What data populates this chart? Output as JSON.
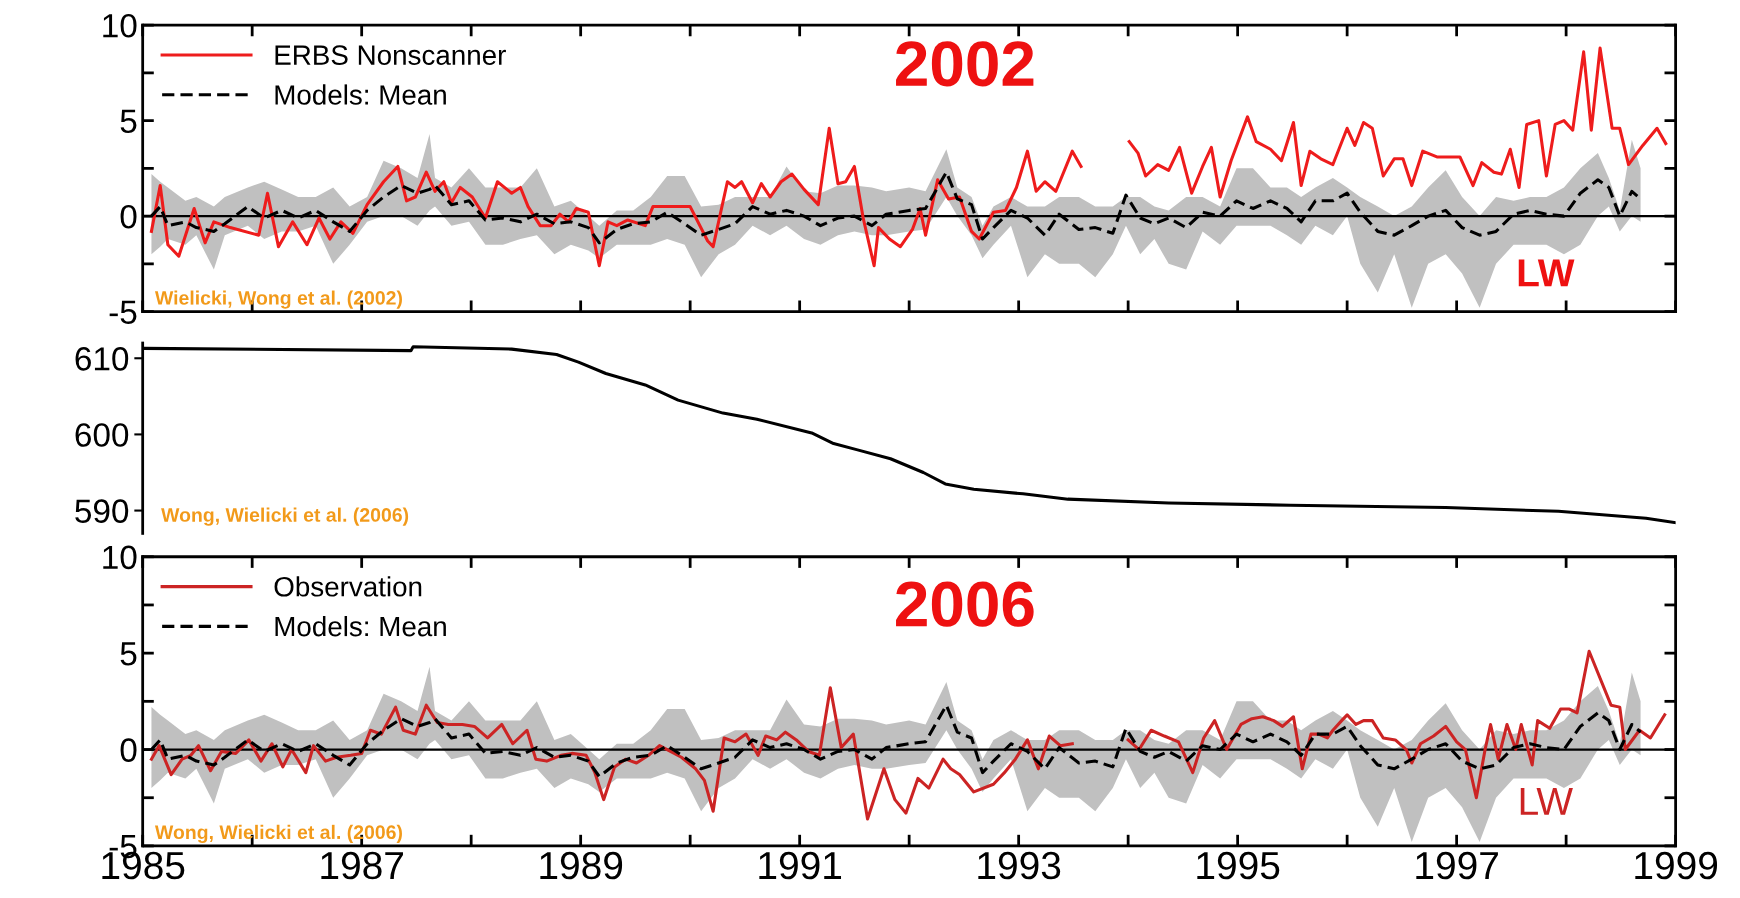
{
  "chart_data": [
    {
      "type": "line",
      "xlim": [
        1985,
        1999
      ],
      "ylim": [
        -5,
        10
      ],
      "xticks": [
        {
          "value": 1985,
          "label": null
        },
        {
          "value": 1986,
          "label": null
        },
        {
          "value": 1987,
          "label": null
        },
        {
          "value": 1988,
          "label": null
        },
        {
          "value": 1989,
          "label": null
        },
        {
          "value": 1990,
          "label": null
        },
        {
          "value": 1991,
          "label": null
        },
        {
          "value": 1992,
          "label": null
        },
        {
          "value": 1993,
          "label": null
        },
        {
          "value": 1994,
          "label": null
        },
        {
          "value": 1995,
          "label": null
        },
        {
          "value": 1996,
          "label": null
        },
        {
          "value": 1997,
          "label": null
        },
        {
          "value": 1998,
          "label": null
        },
        {
          "value": 1999,
          "label": null
        }
      ],
      "yticks": [
        -5,
        {
          "value": -2.5,
          "label": null
        },
        0,
        {
          "value": 2.5,
          "label": null
        },
        5,
        {
          "value": 7.5,
          "label": null
        },
        10
      ],
      "tick_labels": "y",
      "legend": "top left",
      "ref_lines": [
        {
          "axis": "y",
          "value": 0,
          "color": "#000000"
        }
      ],
      "annotations": [
        "2002",
        "LW",
        "Wielicki, Wong et al. (2002)"
      ],
      "series": [
        {
          "name": "ERBS Nonscanner",
          "color": "#ee1c1c",
          "line_style": "solid",
          "x": [
            1985.08,
            1985.16,
            1985.23,
            1985.33,
            1985.47,
            1985.57,
            1985.65,
            1985.8,
            1986.06,
            1986.14,
            1986.24,
            1986.37,
            1986.5,
            1986.61,
            1986.71,
            1986.81,
            1986.92,
            1987.05,
            1987.2,
            1987.33,
            1987.41,
            1987.49,
            1987.59,
            1987.67,
            1987.75,
            1987.82,
            1987.9,
            1988.01,
            1988.13,
            1988.24,
            1988.37,
            1988.45,
            1988.52,
            1988.63,
            1988.73,
            1988.81,
            1988.89,
            1988.96,
            1989.07,
            1989.17,
            1989.25,
            1989.33,
            1989.43,
            1989.59,
            1989.66,
            1989.79,
            1990.0,
            1990.16,
            1990.21,
            1990.34,
            1990.41,
            1990.47,
            1990.57,
            1990.65,
            1990.73,
            1990.83,
            1990.93,
            1991.04,
            1991.17,
            1991.27,
            1991.35,
            1991.42,
            1991.5,
            1991.58,
            1991.68,
            1991.72,
            1991.82,
            1991.92,
            1992.03,
            1992.1,
            1992.15,
            1992.26,
            1992.36,
            1992.46,
            1992.57,
            1992.64,
            1992.77,
            1992.88,
            1992.98,
            1993.08,
            1993.16,
            1993.24,
            1993.34,
            1993.49,
            1993.57,
            1993.75,
            1994.01,
            1994.09,
            1994.16,
            1994.27,
            1994.37,
            1994.47,
            1994.58,
            1994.68,
            1994.76,
            1994.84,
            1994.94,
            1995.09,
            1995.17,
            1995.3,
            1995.4,
            1995.51,
            1995.58,
            1995.66,
            1995.76,
            1995.87,
            1996.0,
            1996.07,
            1996.15,
            1996.23,
            1996.33,
            1996.43,
            1996.51,
            1996.59,
            1996.69,
            1996.82,
            1996.92,
            1997.03,
            1997.15,
            1997.23,
            1997.34,
            1997.41,
            1997.49,
            1997.57,
            1997.64,
            1997.75,
            1997.82,
            1997.9,
            1997.98,
            1998.06,
            1998.16,
            1998.23,
            1998.31,
            1998.42,
            1998.49,
            1998.57,
            1998.7,
            1998.83,
            1998.91
          ],
          "values": [
            -0.8,
            1.6,
            -1.5,
            -2.1,
            0.4,
            -1.4,
            -0.3,
            -0.6,
            -1.0,
            1.2,
            -1.6,
            -0.3,
            -1.5,
            -0.1,
            -1.2,
            -0.3,
            -0.9,
            0.6,
            1.8,
            2.6,
            0.8,
            1.0,
            2.3,
            1.3,
            1.8,
            0.7,
            1.5,
            1.0,
            -0.1,
            1.8,
            1.2,
            1.5,
            0.5,
            -0.5,
            -0.5,
            0.1,
            -0.3,
            0.4,
            0.2,
            -2.6,
            -0.3,
            -0.5,
            -0.2,
            -0.5,
            0.5,
            0.5,
            0.5,
            -1.3,
            -1.6,
            1.8,
            1.5,
            1.8,
            0.7,
            1.7,
            1.0,
            1.8,
            2.2,
            1.4,
            0.6,
            4.6,
            1.7,
            1.8,
            2.6,
            -0.1,
            -2.6,
            -0.6,
            -1.2,
            -1.6,
            -0.7,
            0.4,
            -1.0,
            1.9,
            0.9,
            1.0,
            -0.8,
            -1.2,
            0.2,
            0.3,
            1.5,
            3.4,
            1.3,
            1.8,
            1.3,
            3.4,
            2.6,
            null,
            3.9,
            3.3,
            2.1,
            2.7,
            2.4,
            3.6,
            1.2,
            2.6,
            3.6,
            1.0,
            2.9,
            5.2,
            3.9,
            3.5,
            2.9,
            4.9,
            1.6,
            3.4,
            3.0,
            2.7,
            4.6,
            3.7,
            4.9,
            4.6,
            2.1,
            3.0,
            3.0,
            1.6,
            3.4,
            3.1,
            3.1,
            3.1,
            1.6,
            2.8,
            2.3,
            2.2,
            3.5,
            1.5,
            4.8,
            5.0,
            2.1,
            4.8,
            5.0,
            4.5,
            8.6,
            4.5,
            8.8,
            4.6,
            4.6,
            2.7,
            3.7,
            4.6,
            3.8
          ]
        },
        {
          "name": "Models: Mean",
          "color": "#000000",
          "line_style": "dashed",
          "x": [
            1985.08,
            1985.16,
            1985.23,
            1985.39,
            1985.49,
            1985.65,
            1985.75,
            1985.96,
            1986.11,
            1986.27,
            1986.42,
            1986.58,
            1986.74,
            1986.89,
            1987.05,
            1987.2,
            1987.36,
            1987.51,
            1987.62,
            1987.67,
            1987.82,
            1987.98,
            1988.13,
            1988.29,
            1988.45,
            1988.6,
            1988.76,
            1988.91,
            1989.07,
            1989.17,
            1989.33,
            1989.48,
            1989.64,
            1989.79,
            1989.95,
            1990.1,
            1990.26,
            1990.41,
            1990.57,
            1990.73,
            1990.88,
            1991.04,
            1991.19,
            1991.35,
            1991.5,
            1991.66,
            1991.79,
            1992.0,
            1992.15,
            1992.34,
            1992.44,
            1992.57,
            1992.67,
            1992.77,
            1992.93,
            1993.08,
            1993.24,
            1993.37,
            1993.55,
            1993.7,
            1993.86,
            1993.98,
            1994.11,
            1994.24,
            1994.37,
            1994.53,
            1994.68,
            1994.84,
            1994.99,
            1995.14,
            1995.3,
            1995.45,
            1995.58,
            1995.71,
            1995.87,
            1996.0,
            1996.12,
            1996.28,
            1996.43,
            1996.59,
            1996.74,
            1996.9,
            1997.05,
            1997.21,
            1997.36,
            1997.52,
            1997.67,
            1997.82,
            1997.98,
            1998.13,
            1998.29,
            1998.39,
            1998.49,
            1998.6,
            1998.68
          ],
          "values": [
            0.0,
            0.5,
            -0.5,
            -0.3,
            -0.6,
            -0.8,
            -0.4,
            0.5,
            -0.1,
            0.3,
            -0.1,
            0.3,
            -0.3,
            -0.8,
            0.3,
            1.0,
            1.6,
            1.2,
            1.4,
            1.6,
            0.6,
            0.8,
            -0.2,
            -0.1,
            -0.3,
            0.1,
            -0.4,
            -0.3,
            -0.6,
            -1.4,
            -0.7,
            -0.4,
            -0.3,
            0.2,
            -0.4,
            -1.0,
            -0.7,
            -0.4,
            0.5,
            0.1,
            0.3,
            0.0,
            -0.5,
            -0.1,
            0.0,
            -0.5,
            0.1,
            0.3,
            0.4,
            2.3,
            0.9,
            0.6,
            -1.2,
            -0.6,
            0.3,
            -0.1,
            -1.0,
            0.1,
            -0.7,
            -0.6,
            -0.9,
            1.1,
            -0.1,
            -0.4,
            -0.1,
            -0.6,
            0.2,
            0.0,
            0.8,
            0.4,
            0.8,
            0.4,
            -0.3,
            0.8,
            0.8,
            1.2,
            0.2,
            -0.8,
            -1.0,
            -0.5,
            0.0,
            0.3,
            -0.6,
            -1.0,
            -0.8,
            0.1,
            0.3,
            0.1,
            0.0,
            1.2,
            1.9,
            1.5,
            0.0,
            1.3,
            0.9
          ],
          "upper": [
            2.2,
            1.8,
            1.5,
            0.8,
            1.0,
            0.5,
            1.0,
            1.5,
            1.8,
            1.4,
            1.0,
            1.0,
            1.5,
            0.5,
            1.0,
            2.9,
            2.5,
            2.0,
            4.3,
            2.0,
            1.5,
            2.5,
            1.5,
            1.5,
            1.5,
            2.5,
            0.5,
            0.8,
            0.0,
            -0.5,
            0.3,
            0.3,
            1.0,
            2.1,
            2.1,
            0.5,
            0.6,
            1.0,
            1.0,
            1.0,
            2.6,
            1.3,
            1.2,
            1.6,
            1.6,
            1.5,
            1.3,
            1.5,
            1.3,
            3.5,
            1.5,
            1.0,
            -0.5,
            0.5,
            1.0,
            0.5,
            0.5,
            1.0,
            1.0,
            0.5,
            0.5,
            1.0,
            1.0,
            0.5,
            0.3,
            1.0,
            1.0,
            0.5,
            2.5,
            2.5,
            1.5,
            1.5,
            1.0,
            1.5,
            2.0,
            1.5,
            1.0,
            0.5,
            0.0,
            0.5,
            1.5,
            2.4,
            1.0,
            0.0,
            1.0,
            0.8,
            1.0,
            1.0,
            1.5,
            2.5,
            3.3,
            2.0,
            0.3,
            4.0,
            2.5
          ],
          "lower": [
            -2.0,
            -1.6,
            -1.2,
            -1.5,
            -1.0,
            -2.8,
            -1.0,
            -0.5,
            -1.2,
            -0.8,
            -0.8,
            -0.5,
            -2.5,
            -1.5,
            -0.3,
            0.0,
            0.0,
            -0.5,
            0.3,
            0.5,
            -0.5,
            -0.3,
            -1.5,
            -1.5,
            -1.2,
            -1.0,
            -2.0,
            -1.5,
            -1.8,
            -2.2,
            -1.5,
            -1.5,
            -1.5,
            -1.2,
            -1.5,
            -3.2,
            -2.0,
            -1.5,
            -0.5,
            -1.0,
            -0.5,
            -1.2,
            -1.5,
            -1.0,
            -0.8,
            -1.0,
            -1.0,
            -0.8,
            -0.7,
            1.0,
            0.0,
            -1.0,
            -2.2,
            -1.5,
            -0.5,
            -3.2,
            -2.0,
            -2.5,
            -2.5,
            -3.2,
            -2.0,
            -0.5,
            -2.0,
            -1.2,
            -2.5,
            -2.8,
            -0.8,
            -1.5,
            -0.5,
            -0.5,
            -0.5,
            -1.0,
            -1.5,
            -0.5,
            -1.0,
            0.0,
            -2.5,
            -4.0,
            -2.0,
            -4.8,
            -2.5,
            -2.0,
            -3.0,
            -4.8,
            -2.5,
            -1.5,
            -1.5,
            -1.5,
            -2.0,
            -1.5,
            0.0,
            0.5,
            -0.8,
            0.0,
            -0.3
          ]
        }
      ]
    },
    {
      "type": "line",
      "xlim": [
        1985,
        1999
      ],
      "ylim": [
        587,
        612
      ],
      "yticks": [
        590,
        600,
        610
      ],
      "tick_labels": "y",
      "annotations": [
        "Wong, Wielicki et al. (2006)"
      ],
      "series": [
        {
          "color": "#000000",
          "line_style": "solid",
          "x": [
            1985.01,
            1987.45,
            1987.47,
            1988.37,
            1988.78,
            1988.98,
            1989.23,
            1989.59,
            1989.89,
            1990.3,
            1990.61,
            1991.11,
            1991.31,
            1991.52,
            1991.83,
            1992.13,
            1992.33,
            1992.59,
            1993.04,
            1993.45,
            1994.37,
            1995.48,
            1996.9,
            1997.93,
            1998.73,
            1999.0
          ],
          "values": [
            611.3,
            611.0,
            611.5,
            611.2,
            610.5,
            609.5,
            608.0,
            606.5,
            604.5,
            602.8,
            602.0,
            600.2,
            598.8,
            598.0,
            596.8,
            595.0,
            593.5,
            592.8,
            592.2,
            591.5,
            591.0,
            590.7,
            590.4,
            589.9,
            589.0,
            588.4
          ]
        }
      ]
    },
    {
      "type": "line",
      "xlim": [
        1985,
        1999
      ],
      "ylim": [
        -5,
        10
      ],
      "xticks": [
        1985,
        {
          "value": 1986,
          "label": null
        },
        1987,
        {
          "value": 1988,
          "label": null
        },
        1989,
        {
          "value": 1990,
          "label": null
        },
        1991,
        {
          "value": 1992,
          "label": null
        },
        1993,
        {
          "value": 1994,
          "label": null
        },
        1995,
        {
          "value": 1996,
          "label": null
        },
        1997,
        {
          "value": 1998,
          "label": null
        },
        1999
      ],
      "yticks": [
        -5,
        {
          "value": -2.5,
          "label": null
        },
        0,
        {
          "value": 2.5,
          "label": null
        },
        5,
        {
          "value": 7.5,
          "label": null
        },
        10
      ],
      "legend": "top left",
      "ref_lines": [
        {
          "axis": "y",
          "value": 0,
          "color": "#000000"
        }
      ],
      "annotations": [
        "2006",
        "LW",
        "Wong, Wielicki et al. (2006)"
      ],
      "series": [
        {
          "name": "Observation",
          "color": "#cc2424",
          "line_style": "solid",
          "x": [
            1985.08,
            1985.15,
            1985.26,
            1985.36,
            1985.44,
            1985.51,
            1985.62,
            1985.72,
            1985.85,
            1985.97,
            1986.08,
            1986.18,
            1986.28,
            1986.36,
            1986.49,
            1986.56,
            1986.67,
            1986.77,
            1986.9,
            1987.0,
            1987.08,
            1987.18,
            1987.31,
            1987.38,
            1987.49,
            1987.59,
            1987.69,
            1987.79,
            1987.92,
            1988.03,
            1988.15,
            1988.28,
            1988.38,
            1988.51,
            1988.59,
            1988.69,
            1988.82,
            1988.92,
            1989.05,
            1989.13,
            1989.21,
            1989.31,
            1989.41,
            1989.51,
            1989.62,
            1989.72,
            1989.82,
            1989.92,
            1990.05,
            1990.13,
            1990.21,
            1990.31,
            1990.41,
            1990.51,
            1990.62,
            1990.69,
            1990.79,
            1990.87,
            1990.97,
            1991.08,
            1991.18,
            1991.28,
            1991.38,
            1991.49,
            1991.62,
            1991.77,
            1991.87,
            1991.97,
            1992.08,
            1992.18,
            1992.31,
            1992.38,
            1992.46,
            1992.59,
            1992.77,
            1992.87,
            1992.97,
            1993.08,
            1993.18,
            1993.28,
            1993.38,
            1993.49,
            1993.7,
            1994.0,
            1994.1,
            1994.21,
            1994.33,
            1994.46,
            1994.59,
            1994.69,
            1994.79,
            1994.9,
            1995.03,
            1995.13,
            1995.23,
            1995.33,
            1995.41,
            1995.51,
            1995.59,
            1995.67,
            1995.74,
            1995.82,
            1995.87,
            1995.95,
            1996.0,
            1996.08,
            1996.15,
            1996.23,
            1996.33,
            1996.44,
            1996.54,
            1996.59,
            1996.67,
            1996.79,
            1996.9,
            1997.0,
            1997.08,
            1997.18,
            1997.26,
            1997.31,
            1997.38,
            1997.46,
            1997.54,
            1997.59,
            1997.69,
            1997.74,
            1997.85,
            1997.95,
            1998.03,
            1998.1,
            1998.21,
            1998.41,
            1998.49,
            1998.54,
            1998.67,
            1998.77,
            1998.9
          ],
          "values": [
            -0.5,
            0.2,
            -1.3,
            -0.5,
            -0.3,
            0.2,
            -1.1,
            -0.1,
            -0.2,
            0.5,
            -0.6,
            0.3,
            -0.9,
            0.0,
            -1.2,
            0.2,
            -0.6,
            -0.4,
            -0.3,
            -0.2,
            1.0,
            0.8,
            2.2,
            1.0,
            0.8,
            2.3,
            1.4,
            1.3,
            1.3,
            1.2,
            0.6,
            1.3,
            0.3,
            1.0,
            -0.5,
            -0.6,
            -0.3,
            -0.2,
            -0.3,
            -1.2,
            -2.6,
            -0.9,
            -0.5,
            -0.7,
            -0.3,
            0.2,
            -0.1,
            -0.4,
            -1.0,
            -1.6,
            -3.2,
            0.6,
            0.4,
            0.8,
            -0.3,
            0.7,
            0.5,
            0.9,
            0.5,
            -0.1,
            -0.3,
            3.2,
            0.1,
            0.8,
            -3.6,
            -1.0,
            -2.6,
            -3.3,
            -1.5,
            -2.0,
            -0.5,
            -1.0,
            -1.3,
            -2.2,
            -1.8,
            -1.2,
            -0.5,
            0.5,
            -1.0,
            0.7,
            0.2,
            0.3,
            null,
            0.5,
            0.0,
            1.0,
            0.7,
            0.4,
            -1.2,
            0.6,
            1.5,
            0.0,
            1.3,
            1.6,
            1.7,
            1.5,
            1.2,
            1.7,
            -1.0,
            0.8,
            0.8,
            0.6,
            1.0,
            1.5,
            1.8,
            1.3,
            1.5,
            1.5,
            0.6,
            0.5,
            0.0,
            -0.7,
            0.3,
            0.7,
            1.2,
            0.4,
            0.0,
            -2.5,
            0.0,
            1.3,
            -0.5,
            1.3,
            0.0,
            1.3,
            -0.8,
            1.5,
            1.1,
            2.1,
            2.1,
            1.9,
            5.1,
            2.3,
            2.2,
            0.0,
            1.0,
            0.6,
            1.8
          ]
        },
        {
          "name": "Models: Mean",
          "color": "#000000",
          "line_style": "dashed",
          "x": [
            1985.08,
            1985.16,
            1985.23,
            1985.39,
            1985.49,
            1985.65,
            1985.75,
            1985.96,
            1986.11,
            1986.27,
            1986.42,
            1986.58,
            1986.74,
            1986.89,
            1987.05,
            1987.2,
            1987.36,
            1987.51,
            1987.62,
            1987.67,
            1987.82,
            1987.98,
            1988.13,
            1988.29,
            1988.45,
            1988.6,
            1988.76,
            1988.91,
            1989.07,
            1989.17,
            1989.33,
            1989.48,
            1989.64,
            1989.79,
            1989.95,
            1990.1,
            1990.26,
            1990.41,
            1990.57,
            1990.73,
            1990.88,
            1991.04,
            1991.19,
            1991.35,
            1991.5,
            1991.66,
            1991.79,
            1992.0,
            1992.15,
            1992.34,
            1992.44,
            1992.57,
            1992.67,
            1992.77,
            1992.93,
            1993.08,
            1993.24,
            1993.37,
            1993.55,
            1993.7,
            1993.86,
            1993.98,
            1994.11,
            1994.24,
            1994.37,
            1994.53,
            1994.68,
            1994.84,
            1994.99,
            1995.14,
            1995.3,
            1995.45,
            1995.58,
            1995.71,
            1995.87,
            1996.0,
            1996.12,
            1996.28,
            1996.43,
            1996.59,
            1996.74,
            1996.9,
            1997.05,
            1997.21,
            1997.36,
            1997.52,
            1997.67,
            1997.82,
            1997.98,
            1998.13,
            1998.29,
            1998.39,
            1998.49,
            1998.6,
            1998.68
          ],
          "values": [
            0.0,
            0.5,
            -0.5,
            -0.3,
            -0.6,
            -0.8,
            -0.4,
            0.5,
            -0.1,
            0.3,
            -0.1,
            0.3,
            -0.3,
            -0.8,
            0.3,
            1.0,
            1.6,
            1.2,
            1.4,
            1.6,
            0.6,
            0.8,
            -0.2,
            -0.1,
            -0.3,
            0.1,
            -0.4,
            -0.3,
            -0.6,
            -1.4,
            -0.7,
            -0.4,
            -0.3,
            0.2,
            -0.4,
            -1.0,
            -0.7,
            -0.4,
            0.5,
            0.1,
            0.3,
            0.0,
            -0.5,
            -0.1,
            0.0,
            -0.5,
            0.1,
            0.3,
            0.4,
            2.3,
            0.9,
            0.6,
            -1.2,
            -0.6,
            0.3,
            -0.1,
            -1.0,
            0.1,
            -0.7,
            -0.6,
            -0.9,
            1.1,
            -0.1,
            -0.4,
            -0.1,
            -0.6,
            0.2,
            0.0,
            0.8,
            0.4,
            0.8,
            0.4,
            -0.3,
            0.8,
            0.8,
            1.2,
            0.2,
            -0.8,
            -1.0,
            -0.5,
            0.0,
            0.3,
            -0.6,
            -1.0,
            -0.8,
            0.1,
            0.3,
            0.1,
            0.0,
            1.2,
            1.9,
            1.5,
            0.0,
            1.3,
            0.9
          ],
          "upper": [
            2.2,
            1.8,
            1.5,
            0.8,
            1.0,
            0.5,
            1.0,
            1.5,
            1.8,
            1.4,
            1.0,
            1.0,
            1.5,
            0.5,
            1.0,
            2.9,
            2.5,
            2.0,
            4.3,
            2.0,
            1.5,
            2.5,
            1.5,
            1.5,
            1.5,
            2.5,
            0.5,
            0.8,
            0.0,
            -0.5,
            0.3,
            0.3,
            1.0,
            2.1,
            2.1,
            0.5,
            0.6,
            1.0,
            1.0,
            1.0,
            2.6,
            1.3,
            1.2,
            1.6,
            1.6,
            1.5,
            1.3,
            1.5,
            1.3,
            3.5,
            1.5,
            1.0,
            -0.5,
            0.5,
            1.0,
            0.5,
            0.5,
            1.0,
            1.0,
            0.5,
            0.5,
            1.0,
            1.0,
            0.5,
            0.3,
            1.0,
            1.0,
            0.5,
            2.5,
            2.5,
            1.5,
            1.5,
            1.0,
            1.5,
            2.0,
            1.5,
            1.0,
            0.5,
            0.0,
            0.5,
            1.5,
            2.4,
            1.0,
            0.0,
            1.0,
            0.8,
            1.0,
            1.0,
            1.5,
            2.5,
            3.3,
            2.0,
            0.3,
            4.0,
            2.5
          ],
          "lower": [
            -2.0,
            -1.6,
            -1.2,
            -1.5,
            -1.0,
            -2.8,
            -1.0,
            -0.5,
            -1.2,
            -0.8,
            -0.8,
            -0.5,
            -2.5,
            -1.5,
            -0.3,
            0.0,
            0.0,
            -0.5,
            0.3,
            0.5,
            -0.5,
            -0.3,
            -1.5,
            -1.5,
            -1.2,
            -1.0,
            -2.0,
            -1.5,
            -1.8,
            -2.2,
            -1.5,
            -1.5,
            -1.5,
            -1.2,
            -1.5,
            -3.2,
            -2.0,
            -1.5,
            -0.5,
            -1.0,
            -0.5,
            -1.2,
            -1.5,
            -1.0,
            -0.8,
            -1.0,
            -1.0,
            -0.8,
            -0.7,
            1.0,
            0.0,
            -1.0,
            -2.2,
            -1.5,
            -0.5,
            -3.2,
            -2.0,
            -2.5,
            -2.5,
            -3.2,
            -2.0,
            -0.5,
            -2.0,
            -1.2,
            -2.5,
            -2.8,
            -0.8,
            -1.5,
            -0.5,
            -0.5,
            -0.5,
            -1.0,
            -1.5,
            -0.5,
            -1.0,
            0.0,
            -2.5,
            -4.0,
            -2.0,
            -4.8,
            -2.5,
            -2.0,
            -3.0,
            -4.8,
            -2.5,
            -1.5,
            -1.5,
            -1.5,
            -2.0,
            -1.5,
            0.0,
            0.5,
            -0.8,
            0.0,
            -0.3
          ]
        }
      ]
    }
  ]
}
